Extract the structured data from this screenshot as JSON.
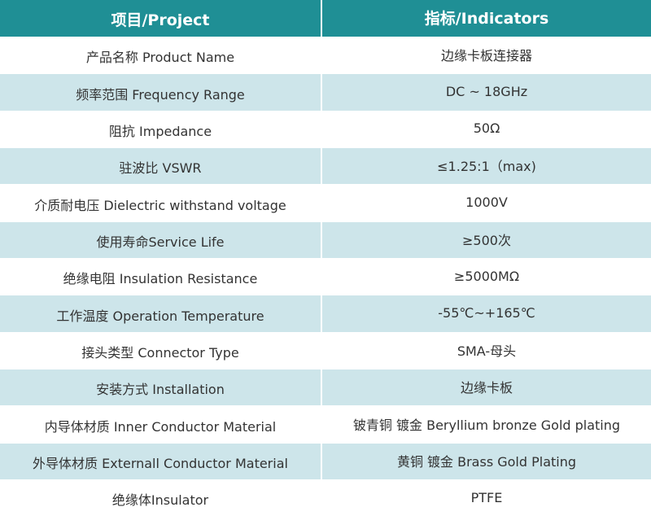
{
  "header": {
    "project": "项目/Project",
    "indicators": "指标/Indicators"
  },
  "rows": [
    {
      "project": "产品名称 Product Name",
      "indicator": "边缘卡板连接器"
    },
    {
      "project": "频率范围 Frequency Range",
      "indicator": "DC ~ 18GHz"
    },
    {
      "project": "阻抗 Impedance",
      "indicator": "50Ω"
    },
    {
      "project": "驻波比 VSWR",
      "indicator": "≤1.25:1（max)"
    },
    {
      "project": "介质耐电压 Dielectric withstand voltage",
      "indicator": "1000V"
    },
    {
      "project": "使用寿命Service Life",
      "indicator": "≥500次"
    },
    {
      "project": "绝缘电阻 Insulation Resistance",
      "indicator": "≥5000MΩ"
    },
    {
      "project": "工作温度 Operation Temperature",
      "indicator": "-55℃~+165℃"
    },
    {
      "project": "接头类型  Connector Type",
      "indicator": "SMA-母头"
    },
    {
      "project": "安装方式 Installation",
      "indicator": "边缘卡板"
    },
    {
      "project": "内导体材质 Inner Conductor Material",
      "indicator": "铍青铜 镀金 Beryllium bronze Gold plating"
    },
    {
      "project": "外导体材质 Externall Conductor Material",
      "indicator": "黄铜 镀金  Brass Gold Plating"
    },
    {
      "project": "绝缘体Insulator",
      "indicator": "PTFE"
    }
  ],
  "colors": {
    "header_bg": "#1f8f95",
    "stripe_bg": "#cde5ea",
    "text": "#333333"
  }
}
